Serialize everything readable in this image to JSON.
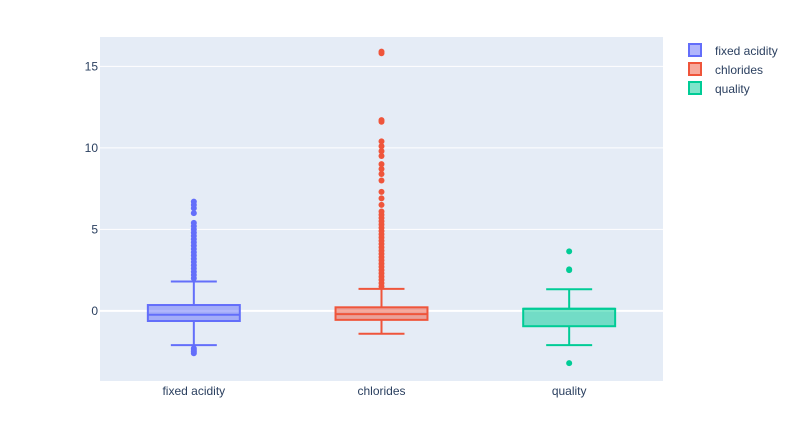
{
  "chart_data": {
    "type": "box",
    "title": "",
    "xlabel": "",
    "ylabel": "",
    "ylim": [
      -4.3,
      16.8
    ],
    "yticks": [
      0,
      5,
      10,
      15
    ],
    "grid": true,
    "legend_position": "top-right",
    "series": [
      {
        "name": "fixed acidity",
        "category": "fixed acidity",
        "color": "#636efa",
        "box": {
          "lowerfence": -2.1,
          "q1": -0.62,
          "median": -0.24,
          "q3": 0.36,
          "upperfence": 1.8
        },
        "outliers": [
          -2.6,
          -2.5,
          -2.4,
          -2.3,
          2.0,
          2.2,
          2.4,
          2.6,
          2.8,
          3.0,
          3.2,
          3.4,
          3.6,
          3.8,
          4.0,
          4.2,
          4.4,
          4.6,
          4.8,
          5.0,
          5.2,
          5.4,
          6.0,
          6.3,
          6.5,
          6.7
        ]
      },
      {
        "name": "chlorides",
        "category": "chlorides",
        "color": "#ef553b",
        "box": {
          "lowerfence": -1.4,
          "q1": -0.55,
          "median": -0.2,
          "q3": 0.22,
          "upperfence": 1.35
        },
        "outliers": [
          1.5,
          1.7,
          1.9,
          2.1,
          2.3,
          2.5,
          2.7,
          2.9,
          3.1,
          3.3,
          3.5,
          3.7,
          3.9,
          4.1,
          4.3,
          4.5,
          4.7,
          4.9,
          5.1,
          5.3,
          5.5,
          5.7,
          5.9,
          6.1,
          6.5,
          6.9,
          7.3,
          8.0,
          8.4,
          8.7,
          9.0,
          9.5,
          9.8,
          10.1,
          10.4,
          11.6,
          11.7,
          15.8,
          15.9
        ]
      },
      {
        "name": "quality",
        "category": "quality",
        "color": "#00cc96",
        "box": {
          "lowerfence": -2.1,
          "q1": -0.94,
          "median": 0.13,
          "q3": 0.13,
          "upperfence": 1.33
        },
        "outliers": [
          -3.2,
          2.5,
          2.55,
          3.65
        ]
      }
    ]
  }
}
